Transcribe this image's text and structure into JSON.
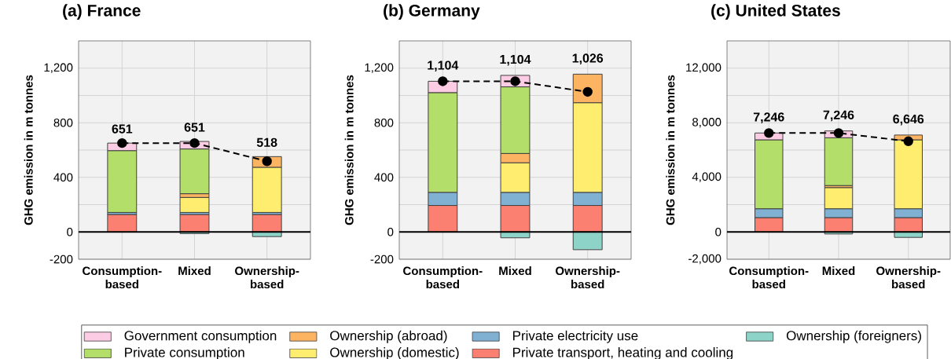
{
  "chart_data": [
    {
      "type": "bar",
      "title": "(a) France",
      "ylabel": "GHG emission in m tonnes",
      "stacked": true,
      "grid": true,
      "legend": "bottom",
      "categories": [
        "Consumption-based",
        "Mixed",
        "Ownership-based"
      ],
      "ylim": [
        -200,
        1400
      ],
      "yticks": [
        -200,
        0,
        {
          "value": 200,
          "label": null
        },
        400,
        {
          "value": 600,
          "label": null
        },
        800,
        {
          "value": 1000,
          "label": null
        },
        {
          "value": 1200,
          "label": "1,200"
        }
      ],
      "ref_lines": [
        {
          "axis": "y",
          "value": 0,
          "color": "#000000"
        }
      ],
      "series": [
        {
          "name": "Private transport, heating and cooling",
          "color": "#fb8072",
          "values": [
            128,
            128,
            128
          ]
        },
        {
          "name": "Private electricity use",
          "color": "#80b1d3",
          "values": [
            15,
            15,
            15
          ]
        },
        {
          "name": "Ownership (domestic)",
          "color": "#ffed6f",
          "values": [
            null,
            110,
            331
          ]
        },
        {
          "name": "Ownership (abroad)",
          "color": "#fdb462",
          "values": [
            null,
            27,
            78
          ]
        },
        {
          "name": "Private consumption",
          "color": "#b3de69",
          "values": [
            453,
            328,
            null
          ]
        },
        {
          "name": "Government consumption",
          "color": "#fbcce4",
          "values": [
            55,
            55,
            null
          ]
        },
        {
          "name": "Ownership (foreigners)",
          "color": "#8dd3c7",
          "values": [
            null,
            -12,
            -34
          ]
        },
        {
          "type": "line",
          "color": "#000000",
          "marker": "circle",
          "line_style": "dashed",
          "values": [
            651,
            651,
            518
          ],
          "value_labels": [
            "651",
            "651",
            "518"
          ]
        }
      ]
    },
    {
      "type": "bar",
      "title": "(b) Germany",
      "ylabel": "GHG emission in m tonnes",
      "stacked": true,
      "grid": true,
      "categories": [
        "Consumption-based",
        "Mixed",
        "Ownership-based"
      ],
      "ylim": [
        -200,
        1400
      ],
      "yticks": [
        -200,
        0,
        {
          "value": 200,
          "label": null
        },
        400,
        {
          "value": 600,
          "label": null
        },
        800,
        {
          "value": 1000,
          "label": null
        },
        {
          "value": 1200,
          "label": "1,200"
        }
      ],
      "ref_lines": [
        {
          "axis": "y",
          "value": 0,
          "color": "#000000"
        }
      ],
      "series": [
        {
          "color": "#fb8072",
          "values": [
            194,
            194,
            194
          ]
        },
        {
          "color": "#80b1d3",
          "values": [
            96,
            96,
            96
          ]
        },
        {
          "color": "#ffed6f",
          "values": [
            null,
            217,
            657
          ]
        },
        {
          "color": "#fdb462",
          "values": [
            null,
            68,
            209
          ]
        },
        {
          "color": "#b3de69",
          "values": [
            731,
            488,
            null
          ]
        },
        {
          "color": "#fbcce4",
          "values": [
            83,
            84,
            null
          ]
        },
        {
          "color": "#8dd3c7",
          "values": [
            null,
            -43,
            -130
          ]
        },
        {
          "type": "line",
          "color": "#000000",
          "marker": "circle",
          "line_style": "dashed",
          "values": [
            1104,
            1104,
            1026
          ],
          "value_labels": [
            "1,104",
            "1,104",
            "1,026"
          ]
        }
      ]
    },
    {
      "type": "bar",
      "title": "(c) United States",
      "ylabel": "GHG emission in m tonnes",
      "stacked": true,
      "grid": true,
      "categories": [
        "Consumption-based",
        "Mixed",
        "Ownership-based"
      ],
      "ylim": [
        -2000,
        14000
      ],
      "yticks": [
        {
          "value": -2000,
          "label": "-2,000"
        },
        0,
        {
          "value": 2000,
          "label": null
        },
        {
          "value": 4000,
          "label": "4,000"
        },
        {
          "value": 6000,
          "label": null
        },
        {
          "value": 8000,
          "label": "8,000"
        },
        {
          "value": 10000,
          "label": null
        },
        {
          "value": 12000,
          "label": "12,000"
        }
      ],
      "ref_lines": [
        {
          "axis": "y",
          "value": 0,
          "color": "#000000"
        }
      ],
      "series": [
        {
          "color": "#fb8072",
          "values": [
            1050,
            1050,
            1050
          ]
        },
        {
          "color": "#80b1d3",
          "values": [
            650,
            650,
            650
          ]
        },
        {
          "color": "#ffed6f",
          "values": [
            null,
            1550,
            5050
          ]
        },
        {
          "color": "#fdb462",
          "values": [
            null,
            150,
            350
          ]
        },
        {
          "color": "#b3de69",
          "values": [
            5050,
            3500,
            null
          ]
        },
        {
          "color": "#fbcce4",
          "values": [
            500,
            500,
            null
          ]
        },
        {
          "color": "#8dd3c7",
          "values": [
            null,
            -150,
            -400
          ]
        },
        {
          "type": "line",
          "color": "#000000",
          "marker": "circle",
          "line_style": "dashed",
          "values": [
            7246,
            7246,
            6646
          ],
          "value_labels": [
            "7,246",
            "7,246",
            "6,646"
          ]
        }
      ]
    }
  ]
}
